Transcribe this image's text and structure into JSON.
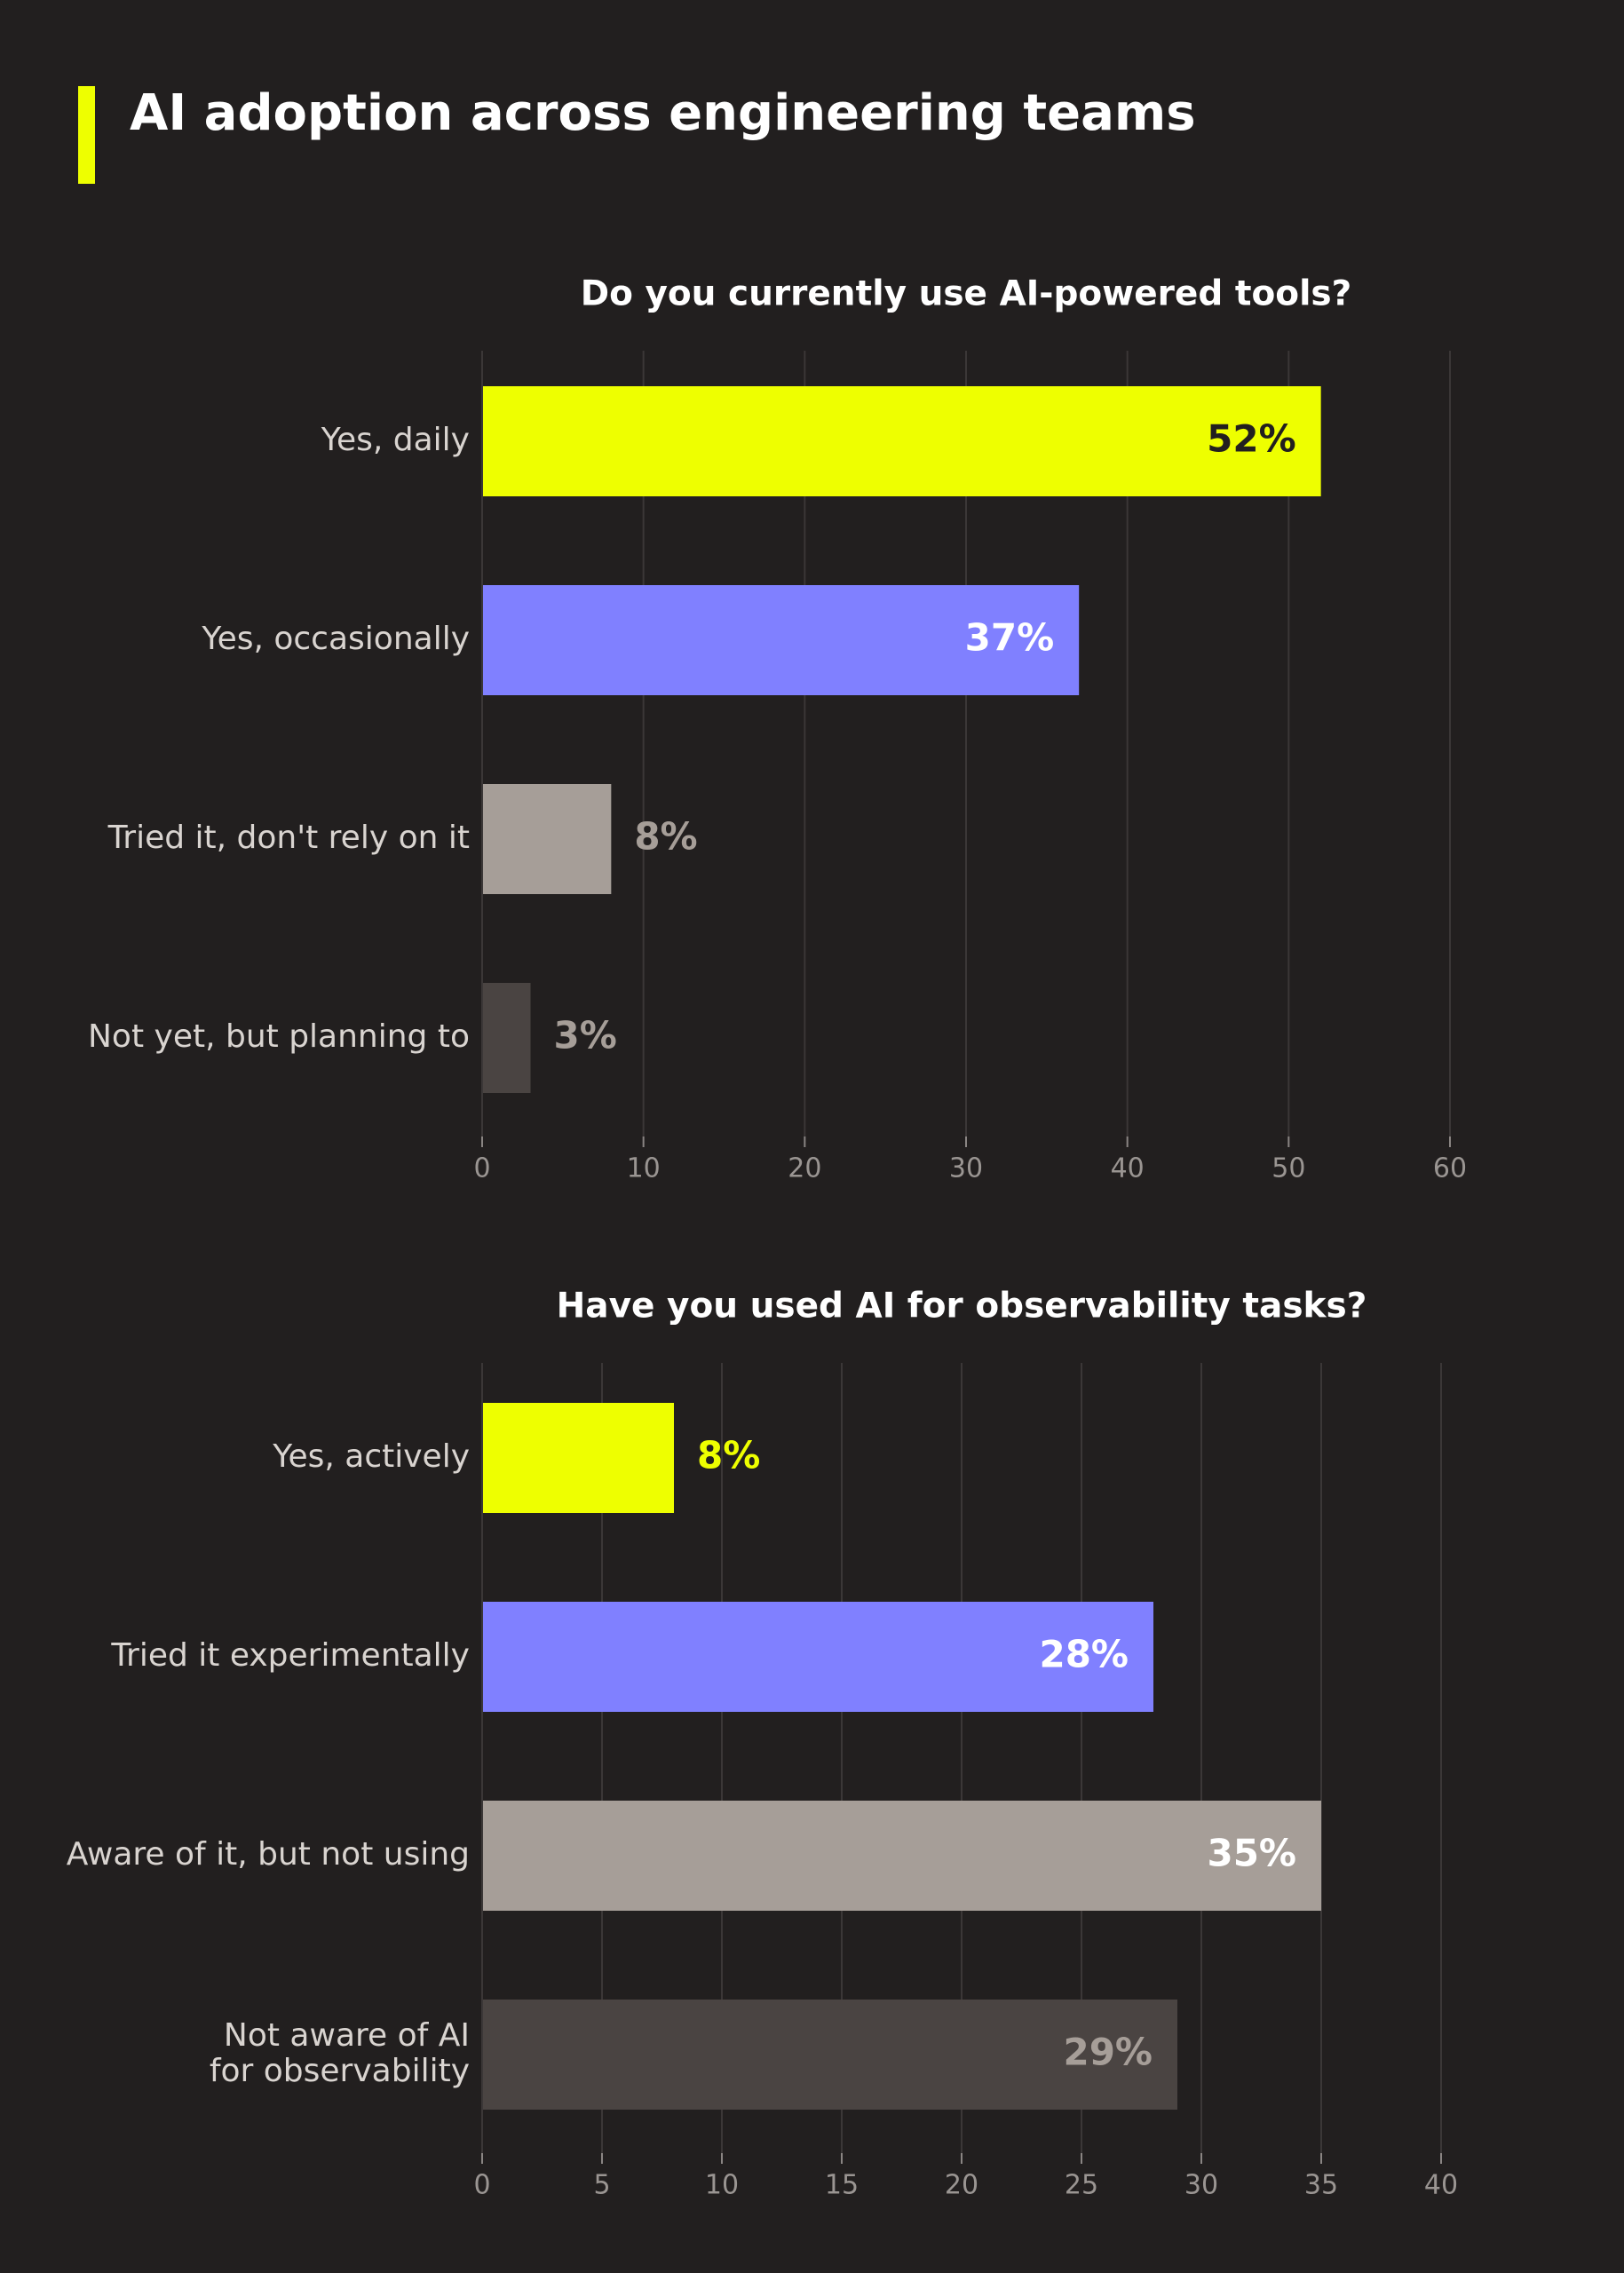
{
  "page": {
    "title": "AI adoption across engineering teams",
    "accent_color": "#eeff00"
  },
  "chart_data": [
    {
      "type": "bar",
      "orientation": "horizontal",
      "title": "Do you currently use AI-powered tools?",
      "categories": [
        "Yes, daily",
        "Yes, occasionally",
        "Tried it, don't rely on it",
        "Not yet, but planning to"
      ],
      "values": [
        52,
        37,
        8,
        3
      ],
      "value_labels": [
        "52%",
        "37%",
        "8%",
        "3%"
      ],
      "colors": [
        "#eeff00",
        "#8080ff",
        "#a69e98",
        "#4a4442"
      ],
      "label_colors": [
        "#221f1f",
        "#ffffff",
        "#a69e98",
        "#a69e98"
      ],
      "label_inside": [
        true,
        true,
        false,
        false
      ],
      "xlim": [
        0,
        60
      ],
      "xticks": [
        0,
        10,
        20,
        30,
        40,
        50,
        60
      ],
      "grid": true
    },
    {
      "type": "bar",
      "orientation": "horizontal",
      "title": "Have you used AI for observability tasks?",
      "categories": [
        "Yes, actively",
        "Tried it experimentally",
        "Aware of it, but not using",
        [
          "Not aware of AI",
          "for observability"
        ]
      ],
      "values": [
        8,
        28,
        35,
        29
      ],
      "value_labels": [
        "8%",
        "28%",
        "35%",
        "29%"
      ],
      "colors": [
        "#eeff00",
        "#8080ff",
        "#a69e98",
        "#4a4442"
      ],
      "label_colors": [
        "#eeff00",
        "#ffffff",
        "#ffffff",
        "#a69e98"
      ],
      "label_inside": [
        false,
        true,
        true,
        true
      ],
      "xlim": [
        0,
        40
      ],
      "xticks": [
        0,
        5,
        10,
        15,
        20,
        25,
        30,
        35,
        40
      ],
      "grid": true
    }
  ]
}
